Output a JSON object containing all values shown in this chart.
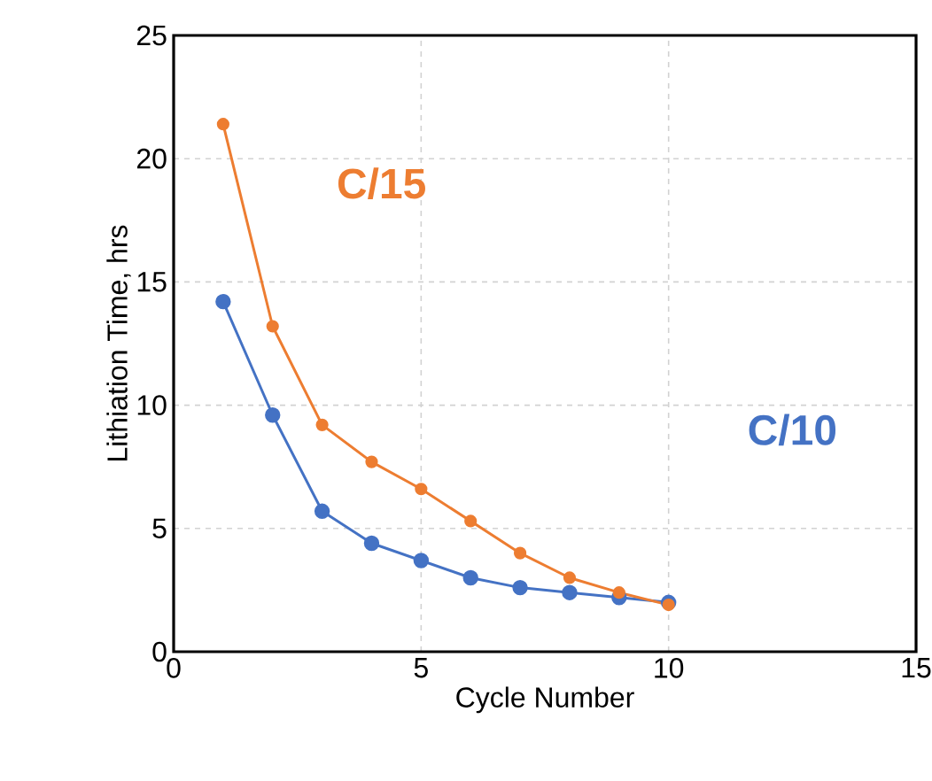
{
  "chart_data": {
    "type": "line",
    "xlabel": "Cycle Number",
    "ylabel": "Lithiation Time, hrs",
    "x": [
      1,
      2,
      3,
      4,
      5,
      6,
      7,
      8,
      9,
      10
    ],
    "series": [
      {
        "name": "C/15",
        "color": "#ed7d31",
        "values": [
          21.4,
          13.2,
          9.2,
          7.7,
          6.6,
          5.3,
          4.0,
          3.0,
          2.4,
          1.9
        ]
      },
      {
        "name": "C/10",
        "color": "#4472c4",
        "values": [
          14.2,
          9.6,
          5.7,
          4.4,
          3.7,
          3.0,
          2.6,
          2.4,
          2.2,
          2.0
        ]
      }
    ],
    "xlim": [
      0,
      15
    ],
    "xticks": [
      0,
      5,
      10,
      15
    ],
    "ylim": [
      0,
      25
    ],
    "yticks": [
      0,
      5,
      10,
      15,
      20,
      25
    ],
    "grid": true,
    "marker": "circle",
    "line_style": "solid",
    "legend": false
  }
}
